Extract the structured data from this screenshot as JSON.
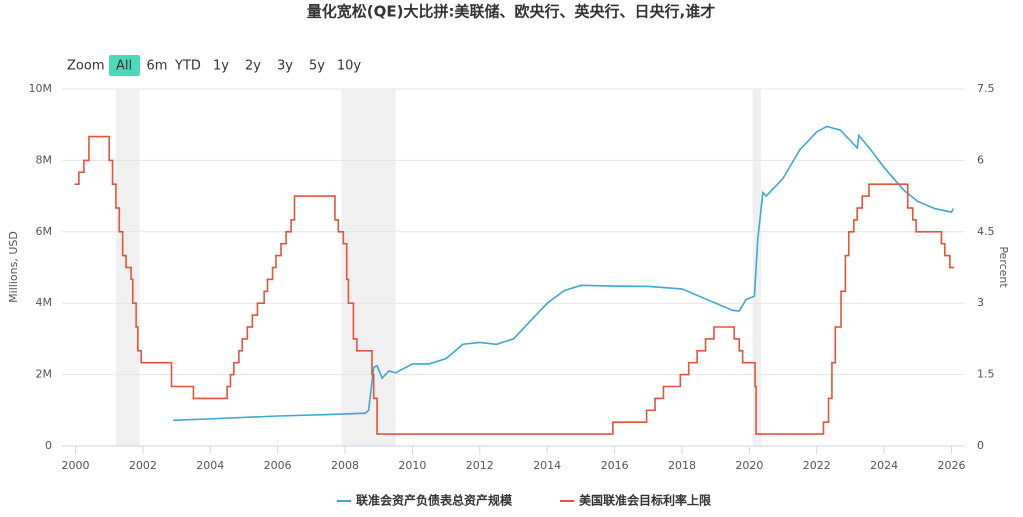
{
  "chart_data": {
    "type": "line",
    "title": "量化宽松(QE)大比拼:美联储、欧央行、英央行、日央行,谁才",
    "range_selector": {
      "label": "Zoom",
      "buttons": [
        "All",
        "6m",
        "YTD",
        "1y",
        "2y",
        "3y",
        "5y",
        "10y"
      ],
      "selected": 0
    },
    "y_label": "Millions, USD",
    "y2_label": "Percent",
    "xlim": [
      1999.6,
      2026.4
    ],
    "xticks": [
      2000,
      2002,
      2004,
      2006,
      2008,
      2010,
      2012,
      2014,
      2016,
      2018,
      2020,
      2022,
      2024,
      2026
    ],
    "ylim": [
      0,
      10000000
    ],
    "yticks": [
      0,
      {
        "value": 2000000,
        "label": "2M"
      },
      {
        "value": 4000000,
        "label": "4M"
      },
      {
        "value": 6000000,
        "label": "6M"
      },
      {
        "value": 8000000,
        "label": "8M"
      },
      {
        "value": 10000000,
        "label": "10M"
      }
    ],
    "y2lim": [
      0,
      7.5
    ],
    "y2ticks": [
      0,
      1.5,
      3,
      4.5,
      6,
      7.5
    ],
    "grid": true,
    "legend": "bottom",
    "bands": [
      {
        "from": 2001.2,
        "to": 2001.9,
        "color": "#f0f0f0"
      },
      {
        "from": 2007.9,
        "to": 2009.5,
        "color": "#f0f0f0"
      },
      {
        "from": 2020.1,
        "to": 2020.35,
        "color": "#f0f0f0"
      }
    ],
    "series": [
      {
        "name": "联准会资产负债表总资产规模",
        "color": "#3ba9d3",
        "style": "line",
        "x": [
          2002.9,
          2004,
          2006,
          2007.5,
          2008.6,
          2008.7,
          2008.85,
          2008.95,
          2009.1,
          2009.3,
          2009.5,
          2010,
          2010.5,
          2011,
          2011.5,
          2012,
          2012.5,
          2013,
          2013.5,
          2014,
          2014.5,
          2015,
          2016,
          2017,
          2018,
          2018.5,
          2019.5,
          2019.7,
          2019.9,
          2020.15,
          2020.25,
          2020.4,
          2020.5,
          2021,
          2021.5,
          2022,
          2022.3,
          2022.7,
          2023.2,
          2023.25,
          2023.6,
          2024,
          2024.6,
          2025,
          2025.5,
          2026,
          2026.05
        ],
        "values": [
          720000,
          760000,
          840000,
          880000,
          920000,
          1000000,
          2200000,
          2250000,
          1900000,
          2100000,
          2050000,
          2300000,
          2300000,
          2450000,
          2850000,
          2900000,
          2850000,
          3000000,
          3500000,
          4000000,
          4350000,
          4500000,
          4480000,
          4470000,
          4400000,
          4200000,
          3800000,
          3780000,
          4100000,
          4200000,
          5800000,
          7100000,
          7000000,
          7500000,
          8300000,
          8800000,
          8950000,
          8850000,
          8350000,
          8700000,
          8300000,
          7800000,
          7150000,
          6850000,
          6650000,
          6550000,
          6650000
        ]
      },
      {
        "name": "美国联准会目标利率上限",
        "color": "#e4543a",
        "style": "step",
        "axis": "y2",
        "x": [
          2000.0,
          2000.1,
          2000.25,
          2000.4,
          2001.0,
          2001.1,
          2001.2,
          2001.3,
          2001.4,
          2001.5,
          2001.65,
          2001.7,
          2001.8,
          2001.85,
          2001.95,
          2002.85,
          2003.5,
          2004.5,
          2004.6,
          2004.7,
          2004.85,
          2004.95,
          2005.1,
          2005.25,
          2005.4,
          2005.6,
          2005.7,
          2005.85,
          2005.95,
          2006.1,
          2006.25,
          2006.4,
          2006.5,
          2007.7,
          2007.8,
          2007.95,
          2008.05,
          2008.1,
          2008.25,
          2008.35,
          2008.8,
          2008.85,
          2008.95,
          2015.95,
          2016.95,
          2017.2,
          2017.45,
          2017.95,
          2018.2,
          2018.45,
          2018.7,
          2018.95,
          2019.55,
          2019.7,
          2019.8,
          2020.17,
          2020.2,
          2022.2,
          2022.35,
          2022.45,
          2022.55,
          2022.72,
          2022.85,
          2022.95,
          2023.1,
          2023.2,
          2023.35,
          2023.55,
          2024.7,
          2024.85,
          2024.95,
          2025.7,
          2025.8,
          2025.95,
          2026.05
        ],
        "values": [
          5.5,
          5.75,
          6.0,
          6.5,
          6.0,
          5.5,
          5.0,
          4.5,
          4.0,
          3.75,
          3.5,
          3.0,
          2.5,
          2.0,
          1.75,
          1.25,
          1.0,
          1.25,
          1.5,
          1.75,
          2.0,
          2.25,
          2.5,
          2.75,
          3.0,
          3.25,
          3.5,
          3.75,
          4.0,
          4.25,
          4.5,
          4.75,
          5.25,
          4.75,
          4.5,
          4.25,
          3.5,
          3.0,
          2.25,
          2.0,
          1.5,
          1.0,
          0.25,
          0.5,
          0.75,
          1.0,
          1.25,
          1.5,
          1.75,
          2.0,
          2.25,
          2.5,
          2.25,
          2.0,
          1.75,
          1.25,
          0.25,
          0.5,
          1.0,
          1.75,
          2.5,
          3.25,
          4.0,
          4.5,
          4.75,
          5.0,
          5.25,
          5.5,
          5.0,
          4.75,
          4.5,
          4.25,
          4.0,
          3.75,
          3.75
        ]
      }
    ]
  }
}
